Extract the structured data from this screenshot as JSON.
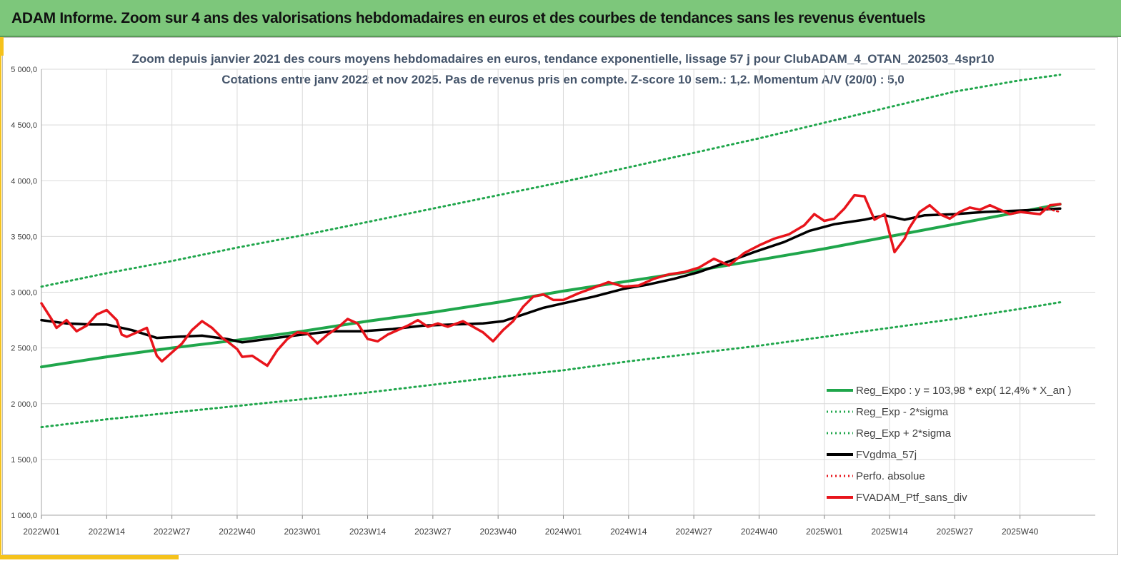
{
  "banner": {
    "title": "ADAM Informe. Zoom sur 4 ans des valorisations hebdomadaires en euros et des courbes de tendances sans les revenus éventuels"
  },
  "colors": {
    "banner_bg": "#7dc77b",
    "accent": "#f5c21b",
    "trend": "#1fa64b",
    "band": "#1fa64b",
    "smooth": "#000000",
    "portfolio": "#e8141b",
    "perfo": "#e8141b",
    "grid": "#d9d9d9",
    "title_text": "#44546a"
  },
  "chart_data": {
    "type": "line",
    "title": "Zoom depuis janvier 2021 des cours moyens hebdomadaires  en euros, tendance exponentielle, lissage 57 j pour ClubADAM_4_OTAN_202503_4spr10",
    "subtitle": "Cotations entre janv 2022 et nov 2025. Pas de revenus pris en compte. Z-score 10 sem.: 1,2. Momentum A/V (20/0) : 5,0",
    "xlabel": "",
    "ylabel": "",
    "ylim": [
      1000,
      5000
    ],
    "yticks": [
      1000,
      1500,
      2000,
      2500,
      3000,
      3500,
      4000,
      4500,
      5000
    ],
    "ytick_labels": [
      "1 000,0",
      "1 500,0",
      "2 000,0",
      "2 500,0",
      "3 000,0",
      "3 500,0",
      "4 000,0",
      "4 500,0",
      "5 000,0"
    ],
    "xlim": [
      0,
      210
    ],
    "xtick_positions": [
      0,
      13,
      26,
      39,
      52,
      65,
      78,
      91,
      104,
      117,
      130,
      143,
      156,
      169,
      182,
      195
    ],
    "xtick_labels": [
      "2022W01",
      "2022W14",
      "2022W27",
      "2022W40",
      "2023W01",
      "2023W14",
      "2023W27",
      "2023W40",
      "2024W01",
      "2024W14",
      "2024W27",
      "2024W40",
      "2025W01",
      "2025W14",
      "2025W27",
      "2025W40"
    ],
    "grid": true,
    "legend_position": "bottom-right",
    "legend": [
      {
        "name": "Reg_Expo : y = 103,98 * exp( 12,4% *  X_an )",
        "style": "solid-thick",
        "color": "#1fa64b"
      },
      {
        "name": "Reg_Exp - 2*sigma",
        "style": "dotted",
        "color": "#1fa64b"
      },
      {
        "name": "Reg_Exp + 2*sigma",
        "style": "dotted",
        "color": "#1fa64b"
      },
      {
        "name": "FVgdma_57j",
        "style": "solid-thick",
        "color": "#000000"
      },
      {
        "name": "Perfo. absolue",
        "style": "dotted",
        "color": "#e8141b"
      },
      {
        "name": "FVADAM_Ptf_sans_div",
        "style": "solid-thick",
        "color": "#e8141b"
      }
    ],
    "series": [
      {
        "name": "Reg_Expo",
        "style": "solid",
        "x": [
          0,
          13,
          26,
          39,
          52,
          65,
          78,
          91,
          104,
          117,
          130,
          143,
          156,
          169,
          182,
          195,
          203
        ],
        "values": [
          2330,
          2420,
          2500,
          2570,
          2650,
          2740,
          2820,
          2910,
          3010,
          3100,
          3190,
          3290,
          3390,
          3500,
          3610,
          3720,
          3790
        ]
      },
      {
        "name": "Reg_Exp - 2*sigma",
        "style": "dotted",
        "x": [
          0,
          13,
          26,
          39,
          52,
          65,
          78,
          91,
          104,
          117,
          130,
          143,
          156,
          169,
          182,
          195,
          203
        ],
        "values": [
          1790,
          1860,
          1920,
          1980,
          2040,
          2100,
          2170,
          2240,
          2300,
          2380,
          2450,
          2520,
          2600,
          2680,
          2760,
          2850,
          2910
        ]
      },
      {
        "name": "Reg_Exp + 2*sigma",
        "style": "dotted",
        "x": [
          0,
          13,
          26,
          39,
          52,
          65,
          78,
          91,
          104,
          117,
          130,
          143,
          156,
          169,
          182,
          195,
          203
        ],
        "values": [
          3050,
          3170,
          3280,
          3400,
          3510,
          3630,
          3750,
          3870,
          3990,
          4120,
          4250,
          4380,
          4520,
          4660,
          4800,
          4900,
          4950
        ]
      },
      {
        "name": "FVgdma_57j",
        "style": "solid",
        "x": [
          0,
          5,
          10,
          13,
          18,
          23,
          27,
          32,
          37,
          40,
          45,
          52,
          58,
          64,
          70,
          76,
          82,
          88,
          92,
          96,
          100,
          104,
          110,
          116,
          121,
          126,
          131,
          136,
          142,
          148,
          153,
          158,
          164,
          168,
          172,
          176,
          182,
          188,
          194,
          199,
          203
        ],
        "values": [
          2750,
          2720,
          2710,
          2710,
          2660,
          2590,
          2600,
          2610,
          2580,
          2550,
          2580,
          2620,
          2650,
          2650,
          2670,
          2700,
          2710,
          2720,
          2740,
          2800,
          2860,
          2900,
          2960,
          3030,
          3070,
          3120,
          3180,
          3260,
          3360,
          3450,
          3550,
          3610,
          3650,
          3690,
          3650,
          3690,
          3700,
          3720,
          3730,
          3740,
          3750
        ]
      },
      {
        "name": "FVADAM_Ptf_sans_div",
        "style": "solid",
        "x": [
          0,
          2,
          3,
          5,
          7,
          9,
          11,
          13,
          15,
          16,
          17,
          19,
          21,
          23,
          24,
          26,
          28,
          30,
          32,
          34,
          36,
          37,
          39,
          40,
          42,
          45,
          47,
          49,
          51,
          53,
          55,
          57,
          59,
          61,
          63,
          65,
          67,
          69,
          71,
          73,
          75,
          77,
          79,
          81,
          84,
          86,
          88,
          90,
          92,
          94,
          96,
          98,
          100,
          102,
          104,
          107,
          110,
          113,
          116,
          119,
          122,
          125,
          128,
          131,
          134,
          137,
          140,
          143,
          146,
          149,
          152,
          154,
          156,
          158,
          160,
          162,
          164,
          166,
          168,
          170,
          172,
          173,
          175,
          177,
          179,
          181,
          183,
          185,
          187,
          189,
          191,
          193,
          195,
          197,
          199,
          201,
          203
        ],
        "values": [
          2900,
          2760,
          2680,
          2750,
          2650,
          2700,
          2800,
          2840,
          2750,
          2620,
          2600,
          2640,
          2680,
          2430,
          2380,
          2460,
          2540,
          2660,
          2740,
          2680,
          2590,
          2560,
          2490,
          2420,
          2430,
          2340,
          2480,
          2580,
          2640,
          2630,
          2540,
          2620,
          2680,
          2760,
          2720,
          2580,
          2560,
          2620,
          2660,
          2700,
          2750,
          2690,
          2720,
          2690,
          2740,
          2690,
          2640,
          2560,
          2660,
          2740,
          2870,
          2960,
          2980,
          2930,
          2930,
          2990,
          3040,
          3090,
          3050,
          3060,
          3120,
          3160,
          3180,
          3220,
          3300,
          3240,
          3350,
          3420,
          3480,
          3520,
          3600,
          3700,
          3640,
          3660,
          3750,
          3870,
          3860,
          3650,
          3700,
          3360,
          3480,
          3580,
          3720,
          3780,
          3700,
          3660,
          3720,
          3760,
          3740,
          3780,
          3740,
          3700,
          3720,
          3710,
          3700,
          3780,
          3790
        ]
      },
      {
        "name": "Perfo. absolue",
        "style": "dotted",
        "x": [
          199,
          201,
          203
        ],
        "values": [
          3760,
          3740,
          3720
        ]
      }
    ]
  }
}
